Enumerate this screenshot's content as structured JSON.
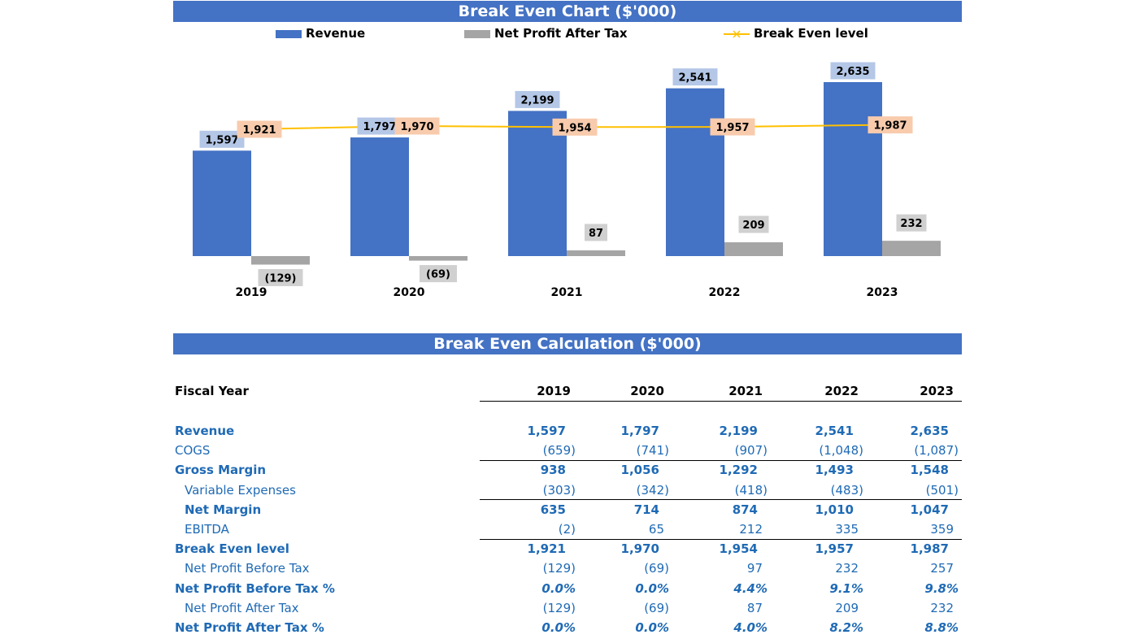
{
  "chart_title": "Break Even Chart ($'000)",
  "calc_title": "Break Even Calculation ($'000)",
  "legend": {
    "revenue": "Revenue",
    "profit": "Net Profit After Tax",
    "breakeven": "Break Even level"
  },
  "colors": {
    "header_bg": "#4472c4",
    "revenue": "#4472c4",
    "profit": "#a5a5a5",
    "breakeven": "#ffc000",
    "revenue_label_bg": "#b4c7e7",
    "breakeven_label_bg": "#f8cbad",
    "profit_label_bg": "#d0d0d0",
    "table_text": "#1f6ab5"
  },
  "chart_data": {
    "type": "bar",
    "categories": [
      "2019",
      "2020",
      "2021",
      "2022",
      "2023"
    ],
    "series": [
      {
        "name": "Revenue",
        "type": "bar",
        "values": [
          1597,
          1797,
          2199,
          2541,
          2635
        ],
        "labels": [
          "1,597",
          "1,797",
          "2,199",
          "2,541",
          "2,635"
        ]
      },
      {
        "name": "Net Profit After Tax",
        "type": "bar",
        "values": [
          -129,
          -69,
          87,
          209,
          232
        ],
        "labels": [
          "(129)",
          "(69)",
          "87",
          "209",
          "232"
        ]
      },
      {
        "name": "Break Even level",
        "type": "line",
        "values": [
          1921,
          1970,
          1954,
          1957,
          1987
        ],
        "labels": [
          "1,921",
          "1,970",
          "1,954",
          "1,957",
          "1,987"
        ]
      }
    ],
    "legend_position": "top",
    "grid": false
  },
  "table": {
    "header_label": "Fiscal Year",
    "years": [
      "2019",
      "2020",
      "2021",
      "2022",
      "2023"
    ],
    "rows": [
      {
        "label": "Revenue",
        "values": [
          "1,597",
          "1,797",
          "2,199",
          "2,541",
          "2,635"
        ]
      },
      {
        "label": "COGS",
        "values": [
          "(659)",
          "(741)",
          "(907)",
          "(1,048)",
          "(1,087)"
        ]
      },
      {
        "label": "Gross Margin",
        "values": [
          "938",
          "1,056",
          "1,292",
          "1,493",
          "1,548"
        ]
      },
      {
        "label": "Variable Expenses",
        "values": [
          "(303)",
          "(342)",
          "(418)",
          "(483)",
          "(501)"
        ]
      },
      {
        "label": "Net Margin",
        "values": [
          "635",
          "714",
          "874",
          "1,010",
          "1,047"
        ]
      },
      {
        "label": "EBITDA",
        "values": [
          "(2)",
          "65",
          "212",
          "335",
          "359"
        ]
      },
      {
        "label": "Break Even level",
        "values": [
          "1,921",
          "1,970",
          "1,954",
          "1,957",
          "1,987"
        ]
      },
      {
        "label": "Net Profit Before Tax",
        "values": [
          "(129)",
          "(69)",
          "97",
          "232",
          "257"
        ]
      },
      {
        "label": "Net Profit Before Tax %",
        "values": [
          "0.0%",
          "0.0%",
          "4.4%",
          "9.1%",
          "9.8%"
        ]
      },
      {
        "label": "Net Profit After Tax",
        "values": [
          "(129)",
          "(69)",
          "87",
          "209",
          "232"
        ]
      },
      {
        "label": "Net Profit After Tax %",
        "values": [
          "0.0%",
          "0.0%",
          "4.0%",
          "8.2%",
          "8.8%"
        ]
      }
    ]
  }
}
